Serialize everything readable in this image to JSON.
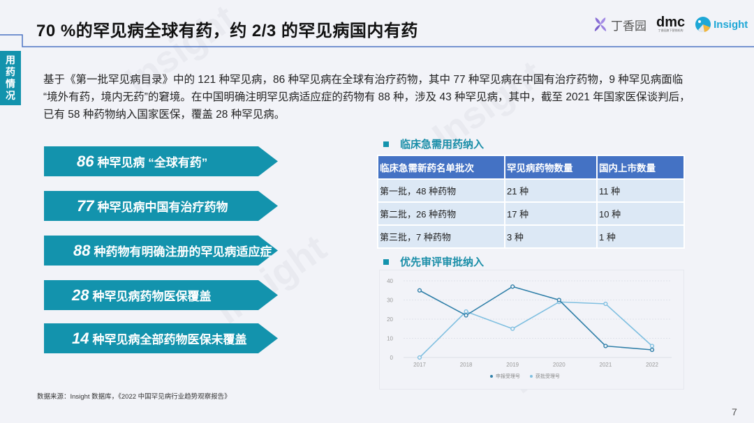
{
  "header": {
    "title": "70 %的罕见病全球有药，约 2/3 的罕见病国内有药",
    "logos": [
      {
        "name": "dxy-logo",
        "text": "丁香园"
      },
      {
        "name": "dmc-logo",
        "text": "dmc",
        "subtext": "丁香园旗下营销机构"
      },
      {
        "name": "insight-logo",
        "text": "Insight"
      }
    ]
  },
  "side_tab": {
    "label_chars": [
      "用",
      "药",
      "情",
      "况"
    ]
  },
  "intro": "基于《第一批罕见病目录》中的 121 种罕见病，86 种罕见病在全球有治疗药物，其中 77 种罕见病在中国有治疗药物，9 种罕见病面临 “境外有药，境内无药”的窘境。在中国明确注明罕见病适应症的药物有 88 种，涉及 43 种罕见病，其中，截至 2021 年国家医保谈判后，已有 58 种药物纳入国家医保，覆盖 28 种罕见病。",
  "arrows": [
    {
      "num": "86",
      "text": "种罕见病 “全球有药”"
    },
    {
      "num": "77",
      "text": "种罕见病中国有治疗药物"
    },
    {
      "num": "88",
      "text": "种药物有明确注册的罕见病适应症"
    },
    {
      "num": "28",
      "text": "种罕见病药物医保覆盖"
    },
    {
      "num": "14",
      "text": "种罕见病全部药物医保未覆盖"
    }
  ],
  "section1": {
    "title": "临床急需用药纳入",
    "table": {
      "headers": [
        "临床急需新药名单批次",
        "罕见病药物数量",
        "国内上市数量"
      ],
      "rows": [
        [
          "第一批，48 种药物",
          "21 种",
          "11 种"
        ],
        [
          "第二批，26 种药物",
          "17 种",
          "10 种"
        ],
        [
          "第三批，7 种药物",
          "3 种",
          "1 种"
        ]
      ]
    }
  },
  "section2": {
    "title": "优先审评审批纳入"
  },
  "chart_data": {
    "type": "line",
    "title": "优先审评审批纳入",
    "x": [
      "2017",
      "2018",
      "2019",
      "2020",
      "2021",
      "2022"
    ],
    "yticks": [
      "0",
      "10",
      "20",
      "30",
      "40"
    ],
    "ylim": [
      0,
      40
    ],
    "grid": true,
    "legend_position": "bottom",
    "series": [
      {
        "name": "申报受理号",
        "color": "#2f7fa8",
        "values": [
          35,
          22,
          37,
          30,
          6,
          4
        ]
      },
      {
        "name": "获批受理号",
        "color": "#7fbfe0",
        "values": [
          0,
          24,
          15,
          29,
          28,
          6
        ]
      }
    ]
  },
  "footer": {
    "source": "数据来源：Insight 数据库，《2022 中国罕见病行业趋势观察报告》",
    "page_number": "7"
  },
  "colors": {
    "background": "#f2f3f8",
    "teal": "#1393ad",
    "table_header": "#4472c4",
    "table_cell": "#dce8f5",
    "title_rule": "#4a72c2"
  }
}
